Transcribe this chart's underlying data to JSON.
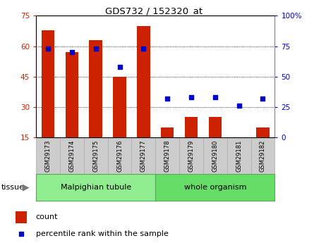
{
  "title": "GDS732 / 152320_at",
  "samples": [
    "GSM29173",
    "GSM29174",
    "GSM29175",
    "GSM29176",
    "GSM29177",
    "GSM29178",
    "GSM29179",
    "GSM29180",
    "GSM29181",
    "GSM29182"
  ],
  "counts": [
    68,
    57,
    63,
    45,
    70,
    20,
    25,
    25,
    15,
    20
  ],
  "percentiles": [
    73,
    70,
    73,
    58,
    73,
    32,
    33,
    33,
    26,
    32
  ],
  "bar_color": "#cc2200",
  "dot_color": "#0000cc",
  "left_ylim": [
    15,
    75
  ],
  "right_ylim": [
    0,
    100
  ],
  "left_yticks": [
    15,
    30,
    45,
    60,
    75
  ],
  "right_yticks": [
    0,
    25,
    50,
    75,
    100
  ],
  "right_yticklabels": [
    "0",
    "25",
    "50",
    "75",
    "100%"
  ],
  "group1_label": "Malpighian tubule",
  "group2_label": "whole organism",
  "group1_color": "#90EE90",
  "group2_color": "#66DD66",
  "tick_bg": "#cccccc",
  "legend_count_label": "count",
  "legend_pct_label": "percentile rank within the sample",
  "n_group1": 5,
  "n_group2": 5
}
